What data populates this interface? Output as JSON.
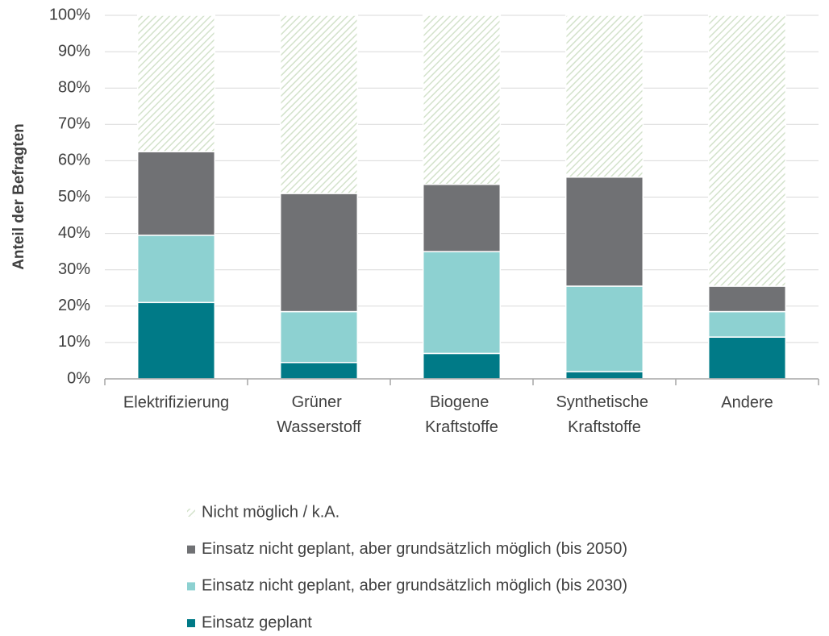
{
  "chart_data": {
    "type": "stacked_bar",
    "y_label": "Anteil der Befragten",
    "categories": [
      "Elektrifizierung",
      "Grüner Wasserstoff",
      "Biogene Kraftstoffe",
      "Synthetische Kraftstoffe",
      "Andere"
    ],
    "series": [
      {
        "name": "Nicht möglich / k.A.",
        "color": "#d3e2cb",
        "hatch": true,
        "values": [
          37.5,
          49,
          46.5,
          44.5,
          74.5
        ]
      },
      {
        "name": "Einsatz nicht geplant, aber grundsätzlich möglich (bis 2050)",
        "color": "#707174",
        "values": [
          23,
          32.5,
          18.5,
          30,
          7
        ]
      },
      {
        "name": "Einsatz nicht geplant, aber grundsätzlich möglich (bis 2030)",
        "color": "#8dd1d1",
        "values": [
          18.5,
          14,
          28,
          23.5,
          7
        ]
      },
      {
        "name": "Einsatz geplant",
        "color": "#007a87",
        "values": [
          21,
          4.5,
          7,
          2,
          11.5
        ]
      }
    ],
    "ylim": [
      0,
      100
    ],
    "yticks": [
      {
        "value": 0,
        "label": "0%"
      },
      {
        "value": 10,
        "label": "10%"
      },
      {
        "value": 20,
        "label": "20%"
      },
      {
        "value": 30,
        "label": "30%"
      },
      {
        "value": 40,
        "label": "40%"
      },
      {
        "value": 50,
        "label": "50%"
      },
      {
        "value": 60,
        "label": "60%"
      },
      {
        "value": 70,
        "label": "70%"
      },
      {
        "value": 80,
        "label": "80%"
      },
      {
        "value": 90,
        "label": "90%"
      },
      {
        "value": 100,
        "label": "100%"
      }
    ],
    "grid": true
  }
}
